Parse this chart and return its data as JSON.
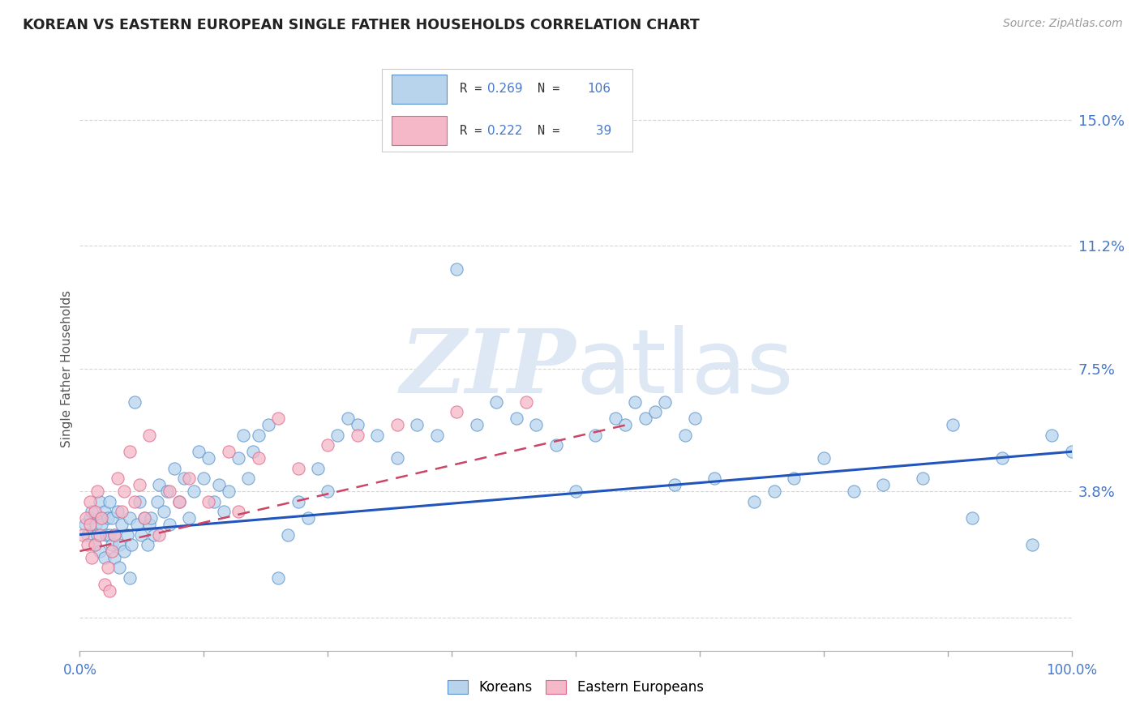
{
  "title": "KOREAN VS EASTERN EUROPEAN SINGLE FATHER HOUSEHOLDS CORRELATION CHART",
  "source": "Source: ZipAtlas.com",
  "ylabel": "Single Father Households",
  "yticks": [
    0.0,
    0.038,
    0.075,
    0.112,
    0.15
  ],
  "ytick_labels": [
    "",
    "3.8%",
    "7.5%",
    "11.2%",
    "15.0%"
  ],
  "korean_R": 0.269,
  "korean_N": 106,
  "eastern_R": 0.222,
  "eastern_N": 39,
  "korean_scatter_color": "#b8d4ec",
  "korean_edge_color": "#5590cc",
  "korean_line_color": "#2255bb",
  "eastern_scatter_color": "#f4b8c8",
  "eastern_edge_color": "#dd6688",
  "eastern_line_color": "#cc4466",
  "background_color": "#ffffff",
  "grid_color": "#cccccc",
  "title_color": "#222222",
  "source_color": "#999999",
  "axis_tick_color": "#4477cc",
  "watermark_zip": "ZIP",
  "watermark_atlas": "atlas",
  "watermark_color": "#dde8f4",
  "xlim": [
    0.0,
    1.0
  ],
  "ylim": [
    -0.01,
    0.16
  ],
  "korean_x": [
    0.005,
    0.008,
    0.01,
    0.012,
    0.015,
    0.016,
    0.018,
    0.02,
    0.02,
    0.022,
    0.022,
    0.025,
    0.025,
    0.027,
    0.028,
    0.03,
    0.03,
    0.032,
    0.032,
    0.035,
    0.035,
    0.038,
    0.04,
    0.04,
    0.042,
    0.045,
    0.048,
    0.05,
    0.05,
    0.052,
    0.055,
    0.058,
    0.06,
    0.062,
    0.065,
    0.068,
    0.07,
    0.072,
    0.075,
    0.078,
    0.08,
    0.085,
    0.088,
    0.09,
    0.095,
    0.1,
    0.105,
    0.11,
    0.115,
    0.12,
    0.125,
    0.13,
    0.135,
    0.14,
    0.145,
    0.15,
    0.16,
    0.165,
    0.17,
    0.175,
    0.18,
    0.19,
    0.2,
    0.21,
    0.22,
    0.23,
    0.24,
    0.25,
    0.26,
    0.27,
    0.28,
    0.3,
    0.32,
    0.34,
    0.36,
    0.38,
    0.4,
    0.42,
    0.44,
    0.46,
    0.48,
    0.5,
    0.52,
    0.54,
    0.56,
    0.6,
    0.64,
    0.68,
    0.7,
    0.72,
    0.75,
    0.78,
    0.81,
    0.85,
    0.88,
    0.9,
    0.93,
    0.96,
    0.98,
    1.0,
    0.55,
    0.57,
    0.58,
    0.59,
    0.61,
    0.62
  ],
  "korean_y": [
    0.028,
    0.025,
    0.03,
    0.032,
    0.022,
    0.028,
    0.025,
    0.02,
    0.035,
    0.03,
    0.028,
    0.018,
    0.032,
    0.025,
    0.03,
    0.025,
    0.035,
    0.022,
    0.03,
    0.018,
    0.025,
    0.032,
    0.015,
    0.022,
    0.028,
    0.02,
    0.025,
    0.012,
    0.03,
    0.022,
    0.065,
    0.028,
    0.035,
    0.025,
    0.03,
    0.022,
    0.028,
    0.03,
    0.025,
    0.035,
    0.04,
    0.032,
    0.038,
    0.028,
    0.045,
    0.035,
    0.042,
    0.03,
    0.038,
    0.05,
    0.042,
    0.048,
    0.035,
    0.04,
    0.032,
    0.038,
    0.048,
    0.055,
    0.042,
    0.05,
    0.055,
    0.058,
    0.012,
    0.025,
    0.035,
    0.03,
    0.045,
    0.038,
    0.055,
    0.06,
    0.058,
    0.055,
    0.048,
    0.058,
    0.055,
    0.105,
    0.058,
    0.065,
    0.06,
    0.058,
    0.052,
    0.038,
    0.055,
    0.06,
    0.065,
    0.04,
    0.042,
    0.035,
    0.038,
    0.042,
    0.048,
    0.038,
    0.04,
    0.042,
    0.058,
    0.03,
    0.048,
    0.022,
    0.055,
    0.05,
    0.058,
    0.06,
    0.062,
    0.065,
    0.055,
    0.06
  ],
  "eastern_x": [
    0.003,
    0.006,
    0.008,
    0.01,
    0.01,
    0.012,
    0.015,
    0.015,
    0.018,
    0.02,
    0.022,
    0.025,
    0.028,
    0.03,
    0.032,
    0.035,
    0.038,
    0.042,
    0.045,
    0.05,
    0.055,
    0.06,
    0.065,
    0.07,
    0.08,
    0.09,
    0.1,
    0.11,
    0.13,
    0.15,
    0.16,
    0.18,
    0.2,
    0.22,
    0.25,
    0.28,
    0.32,
    0.38,
    0.45
  ],
  "eastern_y": [
    0.025,
    0.03,
    0.022,
    0.028,
    0.035,
    0.018,
    0.032,
    0.022,
    0.038,
    0.025,
    0.03,
    0.01,
    0.015,
    0.008,
    0.02,
    0.025,
    0.042,
    0.032,
    0.038,
    0.05,
    0.035,
    0.04,
    0.03,
    0.055,
    0.025,
    0.038,
    0.035,
    0.042,
    0.035,
    0.05,
    0.032,
    0.048,
    0.06,
    0.045,
    0.052,
    0.055,
    0.058,
    0.062,
    0.065
  ],
  "korean_line_x0": 0.0,
  "korean_line_x1": 1.0,
  "korean_line_y0": 0.025,
  "korean_line_y1": 0.05,
  "eastern_line_x0": 0.0,
  "eastern_line_x1": 0.55,
  "eastern_line_y0": 0.02,
  "eastern_line_y1": 0.058
}
